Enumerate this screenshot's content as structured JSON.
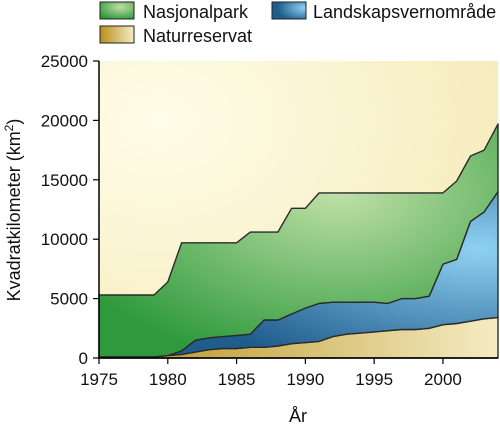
{
  "chart_data": {
    "type": "area",
    "stacked": true,
    "xlabel": "År",
    "ylabel": "Kvadratkilometer (km",
    "ylabel_sup": "2",
    "ylabel_close": ")",
    "xlim": [
      1975,
      2004
    ],
    "ylim": [
      0,
      25000
    ],
    "xticks": [
      "1975",
      "1980",
      "1985",
      "1990",
      "1995",
      "2000"
    ],
    "yticks": [
      "0",
      "5000",
      "10000",
      "15000",
      "20000",
      "25000"
    ],
    "x": [
      1975,
      1976,
      1977,
      1978,
      1979,
      1980,
      1981,
      1982,
      1983,
      1984,
      1985,
      1986,
      1987,
      1988,
      1989,
      1990,
      1991,
      1992,
      1993,
      1994,
      1995,
      1996,
      1997,
      1998,
      1999,
      2000,
      2001,
      2002,
      2003,
      2004
    ],
    "series": [
      {
        "name": "Naturreservat",
        "values": [
          100,
          100,
          100,
          100,
          100,
          200,
          300,
          500,
          700,
          800,
          800,
          900,
          900,
          1000,
          1200,
          1300,
          1400,
          1800,
          2000,
          2100,
          2200,
          2300,
          2400,
          2400,
          2500,
          2800,
          2900,
          3100,
          3300,
          3400
        ]
      },
      {
        "name": "Landskapsvernområde",
        "values": [
          0,
          0,
          0,
          0,
          0,
          0,
          300,
          1000,
          1000,
          1000,
          1100,
          1100,
          2300,
          2200,
          2500,
          2900,
          3200,
          2900,
          2700,
          2600,
          2500,
          2300,
          2600,
          2600,
          2700,
          5100,
          5400,
          8400,
          9000,
          10600
        ]
      },
      {
        "name": "Nasjonalpark",
        "values": [
          5200,
          5200,
          5200,
          5200,
          5200,
          6200,
          9100,
          8200,
          8000,
          7900,
          7800,
          8600,
          7400,
          7400,
          8900,
          8400,
          9300,
          9200,
          9200,
          9200,
          9200,
          9300,
          8900,
          8900,
          8700,
          6000,
          6600,
          5500,
          5200,
          5700
        ]
      }
    ],
    "colors": {
      "Nasjonalpark": [
        "#bfe0a6",
        "#2f9a3d"
      ],
      "Landskapsvernområde": [
        "#8fd1f2",
        "#1f5d8d"
      ],
      "Naturreservat": [
        "#f4ecc2",
        "#b7901b"
      ]
    },
    "background_gradient": [
      "#fffde8",
      "#f3e8b3"
    ],
    "grid": false,
    "legend_position": "top"
  }
}
